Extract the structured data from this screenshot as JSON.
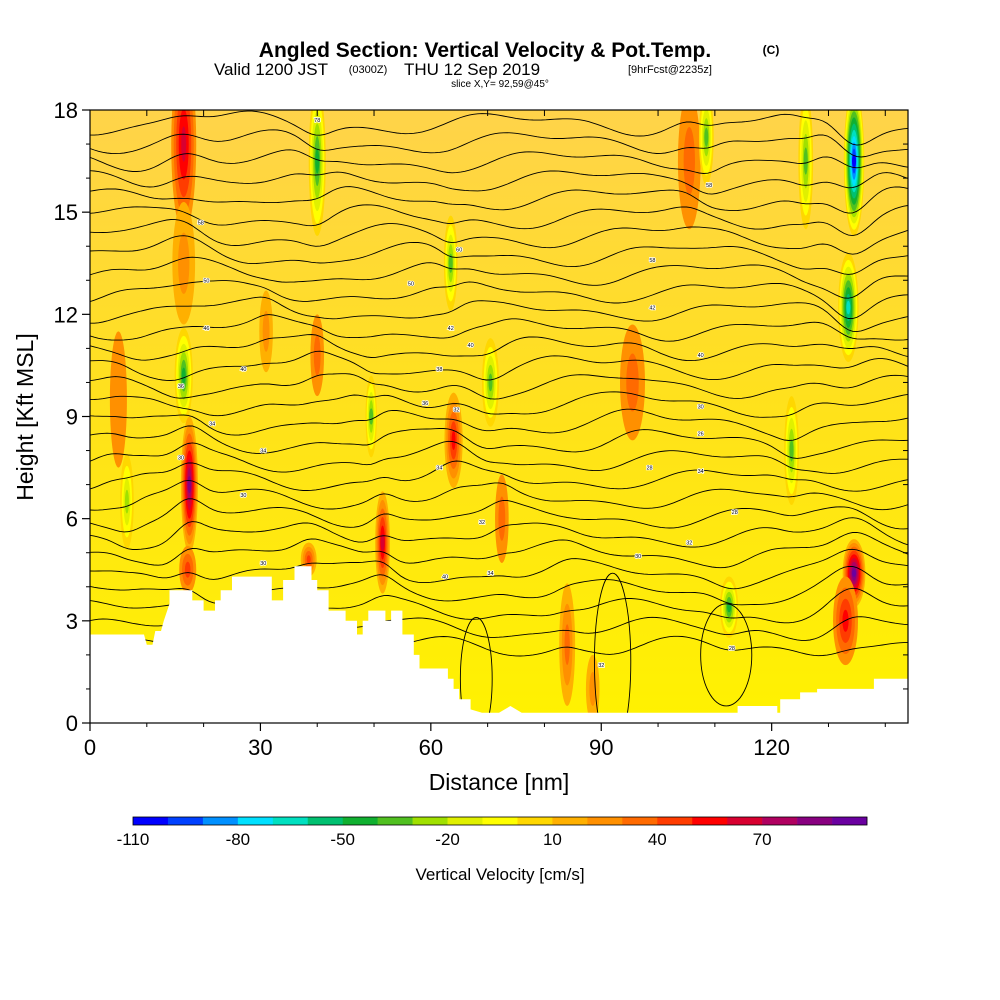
{
  "title": {
    "main": "Angled Section: Vertical Velocity & Pot.Temp.",
    "unit_mark": "(C)",
    "valid_prefix": "Valid 1200 JST",
    "valid_z": "(0300Z)",
    "valid_date": "THU 12 Sep 2019",
    "forecast": "[9hrFcst@2235z]",
    "slice": "slice X,Y= 92,59@45°"
  },
  "chart_data": {
    "type": "heatmap",
    "title": "Angled Section: Vertical Velocity & Pot.Temp. (C)",
    "xlabel": "Distance [nm]",
    "ylabel": "Height [Kft MSL]",
    "xlim": [
      0,
      144
    ],
    "ylim": [
      0,
      18
    ],
    "xticks": [
      0,
      30,
      60,
      90,
      120
    ],
    "yticks": [
      0,
      3,
      6,
      9,
      12,
      15,
      18
    ],
    "grid": false,
    "shaded_field": "Vertical Velocity [cm/s]",
    "contour_field": "Potential Temperature (C)",
    "colorbar": {
      "title": "Vertical Velocity [cm/s]",
      "tick_labels": [
        "-110",
        "-80",
        "-50",
        "-20",
        "10",
        "40",
        "70"
      ],
      "tick_values": [
        -110,
        -80,
        -50,
        -20,
        10,
        40,
        70
      ],
      "range": [
        -110,
        100
      ],
      "step": 10,
      "colors": [
        "#0000ff",
        "#0040ff",
        "#0090ff",
        "#00e0ff",
        "#00e0c0",
        "#00c070",
        "#10b030",
        "#50c020",
        "#a0e000",
        "#e0f000",
        "#ffff00",
        "#ffd700",
        "#ffb000",
        "#ff9000",
        "#ff6a00",
        "#ff3c00",
        "#ff0000",
        "#d80030",
        "#b00060",
        "#880080",
        "#6a00a0"
      ]
    },
    "terrain_kft": [
      [
        0,
        2.6
      ],
      [
        9.5,
        2.6
      ],
      [
        10,
        2.3
      ],
      [
        11,
        2.3
      ],
      [
        11.5,
        2.7
      ],
      [
        12.5,
        2.7
      ],
      [
        13,
        3.0
      ],
      [
        14,
        3.5
      ],
      [
        14,
        3.9
      ],
      [
        18,
        3.9
      ],
      [
        18,
        3.6
      ],
      [
        20,
        3.6
      ],
      [
        20,
        3.3
      ],
      [
        22,
        3.3
      ],
      [
        22,
        3.6
      ],
      [
        23,
        3.6
      ],
      [
        23,
        3.9
      ],
      [
        25,
        3.9
      ],
      [
        25,
        4.3
      ],
      [
        32,
        4.3
      ],
      [
        32,
        3.6
      ],
      [
        34,
        3.6
      ],
      [
        34,
        4.2
      ],
      [
        36,
        4.2
      ],
      [
        36,
        4.6
      ],
      [
        39,
        4.6
      ],
      [
        39,
        4.2
      ],
      [
        40,
        4.2
      ],
      [
        40,
        3.9
      ],
      [
        42,
        3.9
      ],
      [
        42,
        3.3
      ],
      [
        45,
        3.3
      ],
      [
        45,
        3.0
      ],
      [
        47,
        3.0
      ],
      [
        47,
        2.6
      ],
      [
        48,
        2.6
      ],
      [
        48,
        3.0
      ],
      [
        49,
        3.0
      ],
      [
        49,
        3.3
      ],
      [
        52,
        3.3
      ],
      [
        52,
        3.0
      ],
      [
        53,
        3.0
      ],
      [
        53,
        3.3
      ],
      [
        55,
        3.3
      ],
      [
        55,
        2.6
      ],
      [
        57,
        2.6
      ],
      [
        57,
        2.0
      ],
      [
        58,
        2.0
      ],
      [
        58,
        1.6
      ],
      [
        63,
        1.6
      ],
      [
        63,
        1.3
      ],
      [
        64,
        1.3
      ],
      [
        64,
        1.0
      ],
      [
        65,
        1.0
      ],
      [
        65,
        0.7
      ],
      [
        67,
        0.7
      ],
      [
        67,
        0.4
      ],
      [
        69,
        0.3
      ],
      [
        72,
        0.3
      ],
      [
        74,
        0.5
      ],
      [
        76,
        0.3
      ],
      [
        114,
        0.3
      ],
      [
        114,
        0.5
      ],
      [
        121,
        0.5
      ],
      [
        121,
        0.3
      ],
      [
        121.5,
        0.3
      ],
      [
        121.5,
        0.7
      ],
      [
        125,
        0.7
      ],
      [
        125,
        0.9
      ],
      [
        128,
        0.9
      ],
      [
        128,
        1.0
      ],
      [
        138,
        1.0
      ],
      [
        138,
        1.3
      ],
      [
        144,
        1.3
      ]
    ],
    "cells": [
      {
        "x": 16.5,
        "y": 17.0,
        "sx": 2.2,
        "sy": 2.6,
        "v": 60
      },
      {
        "x": 16.5,
        "y": 13.5,
        "sx": 2.0,
        "sy": 1.8,
        "v": 25
      },
      {
        "x": 16.5,
        "y": 10.2,
        "sx": 1.6,
        "sy": 1.4,
        "v": -45
      },
      {
        "x": 17.5,
        "y": 7.0,
        "sx": 1.5,
        "sy": 2.0,
        "v": 85
      },
      {
        "x": 17.2,
        "y": 4.5,
        "sx": 1.5,
        "sy": 0.7,
        "v": 40
      },
      {
        "x": 40.0,
        "y": 16.5,
        "sx": 1.5,
        "sy": 2.2,
        "v": -50
      },
      {
        "x": 40.0,
        "y": 10.8,
        "sx": 1.2,
        "sy": 1.2,
        "v": 30
      },
      {
        "x": 51.5,
        "y": 5.3,
        "sx": 1.3,
        "sy": 1.5,
        "v": 65
      },
      {
        "x": 38.5,
        "y": 4.8,
        "sx": 1.4,
        "sy": 0.5,
        "v": 45
      },
      {
        "x": 49.5,
        "y": 9.0,
        "sx": 1.0,
        "sy": 1.2,
        "v": -35
      },
      {
        "x": 64.0,
        "y": 8.3,
        "sx": 1.6,
        "sy": 1.4,
        "v": 55
      },
      {
        "x": 63.5,
        "y": 13.5,
        "sx": 1.2,
        "sy": 1.4,
        "v": -40
      },
      {
        "x": 70.5,
        "y": 10.0,
        "sx": 1.5,
        "sy": 1.3,
        "v": -35
      },
      {
        "x": 72.5,
        "y": 6.0,
        "sx": 1.2,
        "sy": 1.3,
        "v": 30
      },
      {
        "x": 84.0,
        "y": 2.3,
        "sx": 1.4,
        "sy": 1.8,
        "v": 35
      },
      {
        "x": 88.5,
        "y": 1.0,
        "sx": 1.2,
        "sy": 1.0,
        "v": 25
      },
      {
        "x": 95.5,
        "y": 10.0,
        "sx": 2.2,
        "sy": 1.7,
        "v": 30
      },
      {
        "x": 105.5,
        "y": 16.5,
        "sx": 2.0,
        "sy": 2.0,
        "v": 30
      },
      {
        "x": 108.5,
        "y": 17.2,
        "sx": 1.3,
        "sy": 1.4,
        "v": -40
      },
      {
        "x": 112.5,
        "y": 3.4,
        "sx": 1.6,
        "sy": 0.9,
        "v": -45
      },
      {
        "x": 126.0,
        "y": 16.5,
        "sx": 1.3,
        "sy": 2.0,
        "v": -35
      },
      {
        "x": 134.5,
        "y": 16.5,
        "sx": 1.8,
        "sy": 2.2,
        "v": -110
      },
      {
        "x": 133.5,
        "y": 12.2,
        "sx": 1.8,
        "sy": 1.6,
        "v": -70
      },
      {
        "x": 123.5,
        "y": 8.0,
        "sx": 1.3,
        "sy": 1.6,
        "v": -35
      },
      {
        "x": 134.5,
        "y": 4.4,
        "sx": 2.0,
        "sy": 1.0,
        "v": 95
      },
      {
        "x": 133.0,
        "y": 3.0,
        "sx": 2.2,
        "sy": 1.3,
        "v": 50
      },
      {
        "x": 31.0,
        "y": 11.5,
        "sx": 1.2,
        "sy": 1.2,
        "v": 25
      },
      {
        "x": 5.0,
        "y": 9.5,
        "sx": 1.5,
        "sy": 2.0,
        "v": 20
      },
      {
        "x": 6.5,
        "y": 6.5,
        "sx": 1.2,
        "sy": 1.4,
        "v": -25
      }
    ],
    "contour_labels": [
      {
        "x": 40,
        "y": 17.7,
        "text": "78"
      },
      {
        "x": 19.5,
        "y": 14.7,
        "text": "58"
      },
      {
        "x": 65,
        "y": 13.9,
        "text": "60"
      },
      {
        "x": 99,
        "y": 13.6,
        "text": "58"
      },
      {
        "x": 109,
        "y": 15.8,
        "text": "58"
      },
      {
        "x": 20.5,
        "y": 13.0,
        "text": "50"
      },
      {
        "x": 56.5,
        "y": 12.9,
        "text": "50"
      },
      {
        "x": 20.5,
        "y": 11.6,
        "text": "46"
      },
      {
        "x": 63.5,
        "y": 11.6,
        "text": "42"
      },
      {
        "x": 99,
        "y": 12.2,
        "text": "42"
      },
      {
        "x": 67,
        "y": 11.1,
        "text": "40"
      },
      {
        "x": 107.5,
        "y": 10.8,
        "text": "40"
      },
      {
        "x": 27,
        "y": 10.4,
        "text": "40"
      },
      {
        "x": 61.5,
        "y": 10.4,
        "text": "38"
      },
      {
        "x": 16,
        "y": 9.9,
        "text": "36"
      },
      {
        "x": 59,
        "y": 9.4,
        "text": "36"
      },
      {
        "x": 64.5,
        "y": 9.2,
        "text": "32"
      },
      {
        "x": 107.5,
        "y": 9.3,
        "text": "30"
      },
      {
        "x": 21.5,
        "y": 8.8,
        "text": "34"
      },
      {
        "x": 107.5,
        "y": 8.5,
        "text": "26"
      },
      {
        "x": 30.5,
        "y": 8.0,
        "text": "34"
      },
      {
        "x": 16,
        "y": 7.8,
        "text": "30"
      },
      {
        "x": 61.5,
        "y": 7.5,
        "text": "34"
      },
      {
        "x": 98.5,
        "y": 7.5,
        "text": "28"
      },
      {
        "x": 107.5,
        "y": 7.4,
        "text": "34"
      },
      {
        "x": 27,
        "y": 6.7,
        "text": "30"
      },
      {
        "x": 113.5,
        "y": 6.2,
        "text": "28"
      },
      {
        "x": 69,
        "y": 5.9,
        "text": "32"
      },
      {
        "x": 105.5,
        "y": 5.3,
        "text": "32"
      },
      {
        "x": 96.5,
        "y": 4.9,
        "text": "30"
      },
      {
        "x": 30.5,
        "y": 4.7,
        "text": "30"
      },
      {
        "x": 70.5,
        "y": 4.4,
        "text": "34"
      },
      {
        "x": 62.5,
        "y": 4.3,
        "text": "40"
      },
      {
        "x": 113,
        "y": 2.2,
        "text": "28"
      },
      {
        "x": 90,
        "y": 1.7,
        "text": "32"
      }
    ]
  }
}
